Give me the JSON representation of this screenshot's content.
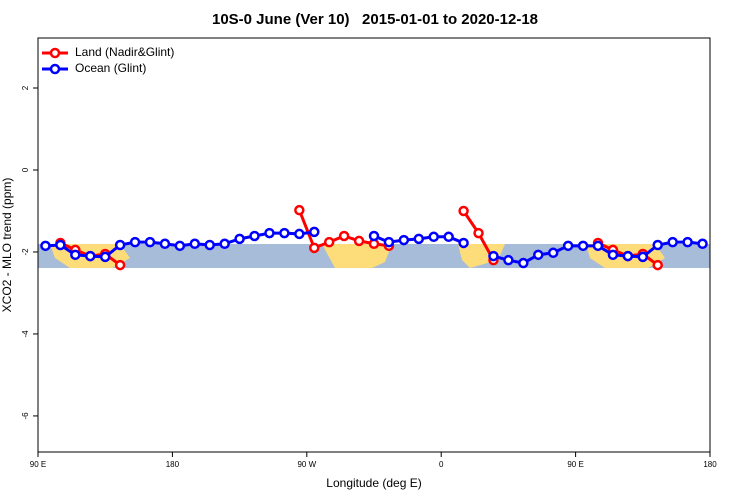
{
  "chart_data": {
    "type": "line",
    "title": "10S-0 June (Ver 10)   2015-01-01 to 2020-12-18",
    "xlabel": "Longitude (deg E)",
    "ylabel": "XCO2 - MLO trend (ppm)",
    "xlim": [
      90,
      540
    ],
    "ylim": [
      -6.88,
      3.22
    ],
    "xticks": [
      {
        "value": 90,
        "label": "90 E"
      },
      180,
      {
        "value": 270,
        "label": "90 W"
      },
      {
        "value": 360,
        "label": "0"
      },
      {
        "value": 450,
        "label": "90 E"
      },
      {
        "value": 540,
        "label": "180"
      }
    ],
    "yticks": [
      2,
      0,
      -2,
      -4,
      -6
    ],
    "legend": "top-left",
    "series": [
      {
        "name": "Land (Nadir&Glint)",
        "color": "#ff0000",
        "x": [
          105,
          115,
          125,
          135,
          145,
          200,
          265,
          275,
          285,
          295,
          305,
          315,
          325,
          350,
          375,
          385,
          395,
          430,
          465,
          475,
          485,
          495,
          505
        ],
        "values": [
          -1.78,
          -1.95,
          -2.1,
          -2.05,
          -2.32,
          null,
          -0.98,
          -1.9,
          -1.76,
          -1.61,
          -1.73,
          -1.8,
          -1.85,
          null,
          -1.0,
          -1.54,
          -2.2,
          null,
          -1.78,
          -1.95,
          -2.1,
          -2.05,
          -2.32
        ]
      },
      {
        "name": "Ocean (Glint)",
        "color": "#0000ff",
        "x": [
          95,
          105,
          115,
          125,
          135,
          145,
          155,
          165,
          175,
          185,
          195,
          205,
          215,
          225,
          235,
          245,
          255,
          265,
          275,
          295,
          315,
          325,
          335,
          345,
          355,
          365,
          375,
          385,
          395,
          405,
          415,
          425,
          435,
          445,
          455,
          465,
          475,
          485,
          495,
          505,
          515,
          525,
          535
        ],
        "values": [
          -1.85,
          -1.83,
          -2.07,
          -2.1,
          -2.12,
          -1.83,
          -1.76,
          -1.76,
          -1.8,
          -1.85,
          -1.8,
          -1.83,
          -1.8,
          -1.68,
          -1.61,
          -1.54,
          -1.54,
          -1.56,
          -1.51,
          null,
          -1.61,
          -1.76,
          -1.71,
          -1.68,
          -1.63,
          -1.63,
          -1.78,
          null,
          -2.1,
          -2.2,
          -2.27,
          -2.07,
          -2.02,
          -1.85,
          -1.85,
          -1.85,
          -2.07,
          -2.1,
          -2.12,
          -1.83,
          -1.76,
          -1.76,
          -1.8
        ]
      }
    ]
  }
}
